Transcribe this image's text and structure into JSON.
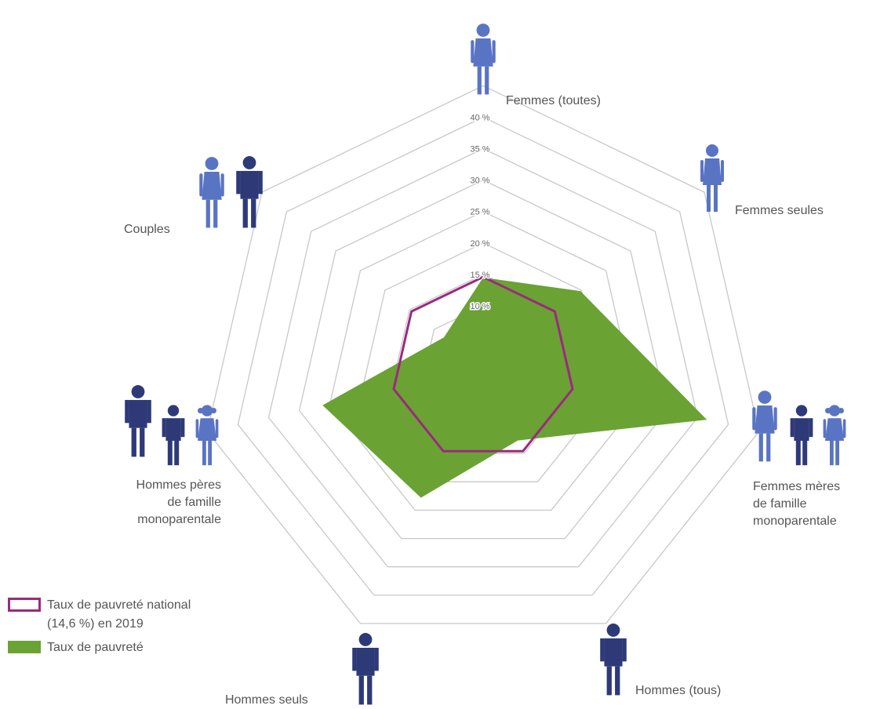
{
  "chart_data": {
    "type": "radar",
    "axes": [
      "Femmes (toutes)",
      "Femmes seules",
      "Femmes mères\nde famille\nmonoparentale",
      "Hommes (tous)",
      "Hommes seuls",
      "Hommes pères\nde famille\nmonoparentale",
      "Couples"
    ],
    "tick_labels": [
      "10 %",
      "15 %",
      "20 %",
      "25 %",
      "30 %",
      "35 %",
      "40 %"
    ],
    "rmin": 5,
    "rmax": 45,
    "ring_values": [
      10,
      15,
      20,
      25,
      30,
      35,
      40,
      45
    ],
    "series": [
      {
        "name": "Taux de pauvreté",
        "color": "#6aa234",
        "values": [
          14.5,
          19.8,
          36.5,
          12.7,
          22.8,
          26.2,
          8.0
        ]
      },
      {
        "name": "Taux de pauvreté national\n(14,6 %) en 2019",
        "color": "#9b2a7e",
        "values": [
          14.6,
          14.6,
          14.6,
          14.6,
          14.6,
          14.6,
          14.6
        ]
      }
    ]
  },
  "legend": {
    "national_label": "Taux de pauvreté national\n(14,6 %) en 2019",
    "rate_label": "Taux de pauvreté"
  },
  "colors": {
    "women_icon": "#5a74c4",
    "men_icon": "#2e3a78",
    "grid": "#c8c8c8"
  }
}
